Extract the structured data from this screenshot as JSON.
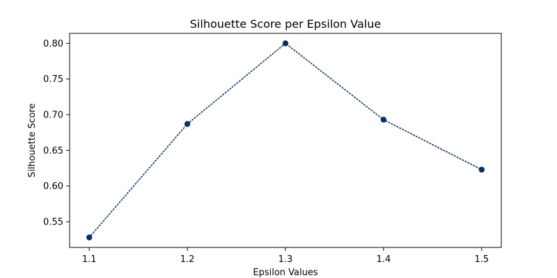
{
  "chart_data": {
    "type": "line",
    "title": "Silhouette Score per Epsilon Value",
    "xlabel": "Epsilon Values",
    "ylabel": "Silhouette Score",
    "x": [
      1.1,
      1.2,
      1.3,
      1.4,
      1.5
    ],
    "series": [
      {
        "values": [
          0.528,
          0.687,
          0.8,
          0.693,
          0.623
        ],
        "color": "#08306b",
        "line_style": "dotted",
        "marker": "circle"
      }
    ],
    "xlim": [
      1.08,
      1.52
    ],
    "ylim": [
      0.514,
      0.814
    ],
    "xticks": [
      1.1,
      1.2,
      1.3,
      1.4,
      1.5
    ],
    "xtick_labels": [
      "1.1",
      "1.2",
      "1.3",
      "1.4",
      "1.5"
    ],
    "yticks": [
      0.55,
      0.6,
      0.65,
      0.7,
      0.75,
      0.8
    ],
    "ytick_labels": [
      "0.55",
      "0.60",
      "0.65",
      "0.70",
      "0.75",
      "0.80"
    ],
    "grid": false,
    "legend": "none"
  }
}
